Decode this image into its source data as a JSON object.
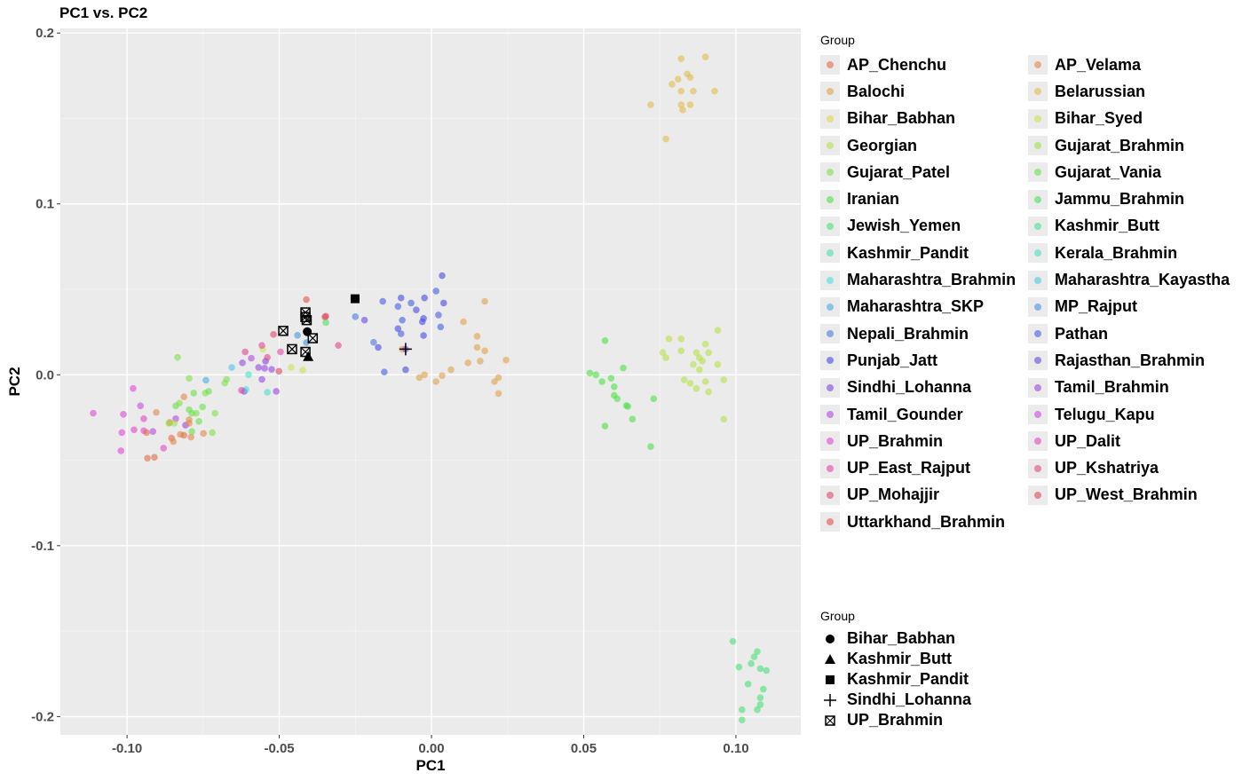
{
  "chart_data": {
    "type": "scatter",
    "title": "PC1 vs. PC2",
    "xlabel": "PC1",
    "ylabel": "PC2",
    "xlim": [
      -0.1219,
      0.1213
    ],
    "ylim": [
      -0.2107,
      0.2027
    ],
    "xticks": [
      -0.1,
      -0.05,
      0,
      0.05,
      0.1
    ],
    "xtick_labels": [
      "-0.10",
      "-0.05",
      "0.00",
      "0.05",
      "0.10"
    ],
    "yticks": [
      -0.2,
      -0.1,
      0,
      0.1,
      0.2
    ],
    "ytick_labels": [
      "-0.2",
      "-0.1",
      "0.0",
      "0.1",
      "0.2"
    ],
    "grid": true,
    "legend_title": "Group",
    "legend_placement": "right",
    "groups": [
      "AP_Chenchu",
      "AP_Velama",
      "Balochi",
      "Belarussian",
      "Bihar_Babhan",
      "Bihar_Syed",
      "Georgian",
      "Gujarat_Brahmin",
      "Gujarat_Patel",
      "Gujarat_Vania",
      "Iranian",
      "Jammu_Brahmin",
      "Jewish_Yemen",
      "Kashmir_Butt",
      "Kashmir_Pandit",
      "Kerala_Brahmin",
      "Maharashtra_Brahmin",
      "Maharashtra_Kayastha",
      "Maharashtra_SKP",
      "MP_Rajput",
      "Nepali_Brahmin",
      "Pathan",
      "Punjab_Jatt",
      "Rajasthan_Brahmin",
      "Sindhi_Lohanna",
      "Tamil_Brahmin",
      "Tamil_Gounder",
      "Telugu_Kapu",
      "UP_Brahmin",
      "UP_Dalit",
      "UP_East_Rajput",
      "UP_Kshatriya",
      "UP_Mohajjir",
      "UP_West_Brahmin",
      "Uttarkhand_Brahmin"
    ],
    "points": [
      [
        0.082,
        0.185,
        3
      ],
      [
        0.09,
        0.186,
        3
      ],
      [
        0.084,
        0.176,
        3
      ],
      [
        0.081,
        0.173,
        3
      ],
      [
        0.085,
        0.174,
        3
      ],
      [
        0.079,
        0.17,
        3
      ],
      [
        0.086,
        0.166,
        3
      ],
      [
        0.082,
        0.166,
        3
      ],
      [
        0.093,
        0.166,
        3
      ],
      [
        0.072,
        0.158,
        3
      ],
      [
        0.082,
        0.158,
        3
      ],
      [
        0.085,
        0.158,
        3
      ],
      [
        0.0825,
        0.155,
        3
      ],
      [
        0.077,
        0.138,
        3
      ],
      [
        0.094,
        0.026,
        6
      ],
      [
        0.078,
        0.021,
        6
      ],
      [
        0.082,
        0.021,
        6
      ],
      [
        0.09,
        0.018,
        6
      ],
      [
        0.076,
        0.013,
        6
      ],
      [
        0.082,
        0.014,
        6
      ],
      [
        0.087,
        0.013,
        6
      ],
      [
        0.091,
        0.013,
        6
      ],
      [
        0.077,
        0.01,
        6
      ],
      [
        0.088,
        0.01,
        6
      ],
      [
        0.089,
        0.008,
        6
      ],
      [
        0.086,
        0.006,
        6
      ],
      [
        0.094,
        0.006,
        6
      ],
      [
        0.088,
        0.003,
        6
      ],
      [
        0.083,
        -0.003,
        6
      ],
      [
        0.085,
        -0.005,
        6
      ],
      [
        0.096,
        -0.003,
        6
      ],
      [
        0.09,
        -0.004,
        6
      ],
      [
        0.087,
        -0.008,
        6
      ],
      [
        0.091,
        -0.01,
        6
      ],
      [
        0.096,
        -0.026,
        6
      ],
      [
        0.057,
        0.02,
        10
      ],
      [
        0.052,
        0.001,
        10
      ],
      [
        0.054,
        0.0,
        10
      ],
      [
        0.063,
        0.004,
        10
      ],
      [
        0.059,
        -0.002,
        10
      ],
      [
        0.056,
        -0.004,
        10
      ],
      [
        0.06,
        -0.007,
        10
      ],
      [
        0.06,
        -0.012,
        10
      ],
      [
        0.061,
        -0.014,
        10
      ],
      [
        0.064,
        -0.018,
        10
      ],
      [
        0.0645,
        -0.0185,
        10
      ],
      [
        0.073,
        -0.014,
        10
      ],
      [
        0.066,
        -0.026,
        10
      ],
      [
        0.057,
        -0.03,
        10
      ],
      [
        0.072,
        -0.042,
        10
      ],
      [
        0.099,
        -0.156,
        12
      ],
      [
        0.107,
        -0.162,
        12
      ],
      [
        0.105,
        -0.169,
        12
      ],
      [
        0.106,
        -0.165,
        12
      ],
      [
        0.108,
        -0.172,
        12
      ],
      [
        0.11,
        -0.173,
        12
      ],
      [
        0.101,
        -0.171,
        12
      ],
      [
        0.104,
        -0.181,
        12
      ],
      [
        0.109,
        -0.184,
        12
      ],
      [
        0.108,
        -0.189,
        12
      ],
      [
        0.108,
        -0.193,
        12
      ],
      [
        0.107,
        -0.196,
        12
      ],
      [
        0.102,
        -0.196,
        12
      ],
      [
        0.102,
        -0.202,
        12
      ],
      [
        0.0035,
        0.058,
        22
      ],
      [
        0.0015,
        0.049,
        21
      ],
      [
        0.004,
        0.042,
        22
      ],
      [
        -0.016,
        0.043,
        21
      ],
      [
        -0.01,
        0.045,
        22
      ],
      [
        -0.0067,
        0.042,
        21
      ],
      [
        -0.0023,
        0.045,
        22
      ],
      [
        -0.011,
        0.04,
        21
      ],
      [
        -0.005,
        0.038,
        22
      ],
      [
        0.0023,
        0.035,
        21
      ],
      [
        -0.0026,
        0.033,
        22
      ],
      [
        -0.0096,
        0.032,
        21
      ],
      [
        -0.003,
        0.031,
        22
      ],
      [
        0.003,
        0.028,
        21
      ],
      [
        -0.011,
        0.027,
        22
      ],
      [
        -0.01,
        0.024,
        21
      ],
      [
        -0.0026,
        0.023,
        22
      ],
      [
        -0.025,
        0.034,
        20
      ],
      [
        -0.022,
        0.032,
        23
      ],
      [
        -0.019,
        0.019,
        20
      ],
      [
        -0.0175,
        0.016,
        22
      ],
      [
        -0.0155,
        0.0016,
        21
      ],
      [
        -0.0085,
        0.003,
        22
      ],
      [
        0.0175,
        0.043,
        2
      ],
      [
        0.0105,
        0.031,
        2
      ],
      [
        0.015,
        0.0225,
        2
      ],
      [
        0.015,
        0.016,
        2
      ],
      [
        0.0175,
        0.014,
        2
      ],
      [
        0.016,
        0.008,
        2
      ],
      [
        0.012,
        0.007,
        2
      ],
      [
        0.0245,
        0.0086,
        2
      ],
      [
        0.0064,
        0.003,
        2
      ],
      [
        0.0035,
        -0.0005,
        2
      ],
      [
        -0.0023,
        0.0,
        2
      ],
      [
        -0.004,
        -0.0016,
        2
      ],
      [
        0.0015,
        -0.004,
        2
      ],
      [
        0.022,
        -0.0016,
        2
      ],
      [
        0.0207,
        -0.004,
        2
      ],
      [
        0.022,
        -0.011,
        2
      ],
      [
        -0.0096,
        0.015,
        2
      ],
      [
        -0.0085,
        0.015,
        24
      ],
      [
        -0.1111,
        -0.0225,
        28
      ],
      [
        -0.1012,
        -0.0231,
        28
      ],
      [
        -0.098,
        -0.008,
        28
      ],
      [
        -0.0956,
        -0.0182,
        27
      ],
      [
        -0.0945,
        -0.0257,
        29
      ],
      [
        -0.1017,
        -0.0338,
        28
      ],
      [
        -0.102,
        -0.0445,
        28
      ],
      [
        -0.0977,
        -0.0322,
        29
      ],
      [
        -0.0945,
        -0.0327,
        28
      ],
      [
        -0.088,
        -0.0429,
        29
      ],
      [
        -0.0915,
        -0.0332,
        26
      ],
      [
        -0.084,
        -0.0257,
        26
      ],
      [
        -0.0808,
        -0.0295,
        25
      ],
      [
        -0.0621,
        0.007,
        25
      ],
      [
        -0.0592,
        0.0097,
        26
      ],
      [
        -0.0568,
        0.0043,
        25
      ],
      [
        -0.0548,
        0.0038,
        25
      ],
      [
        -0.0545,
        0.008,
        24
      ],
      [
        -0.0525,
        0.0032,
        25
      ],
      [
        -0.0557,
        -0.0027,
        25
      ],
      [
        -0.0615,
        -0.0097,
        24
      ],
      [
        -0.051,
        -0.0097,
        25
      ],
      [
        -0.0813,
        -0.0129,
        1
      ],
      [
        -0.0904,
        -0.022,
        1
      ],
      [
        -0.086,
        -0.0279,
        0
      ],
      [
        -0.0796,
        -0.0263,
        1
      ],
      [
        -0.0796,
        -0.0284,
        1
      ],
      [
        -0.0936,
        -0.0338,
        0
      ],
      [
        -0.0825,
        -0.0349,
        1
      ],
      [
        -0.0813,
        -0.0354,
        0
      ],
      [
        -0.079,
        -0.0365,
        1
      ],
      [
        -0.0749,
        -0.0343,
        1
      ],
      [
        -0.0854,
        -0.037,
        0
      ],
      [
        -0.0848,
        -0.0391,
        1
      ],
      [
        -0.0933,
        -0.0488,
        0
      ],
      [
        -0.091,
        -0.0483,
        0
      ],
      [
        -0.0834,
        0.0102,
        8
      ],
      [
        -0.0796,
        -0.0021,
        8
      ],
      [
        -0.0781,
        -0.0107,
        9
      ],
      [
        -0.0743,
        -0.0107,
        8
      ],
      [
        -0.0732,
        -0.0097,
        9
      ],
      [
        -0.0679,
        -0.0048,
        8
      ],
      [
        -0.0673,
        -0.0027,
        8
      ],
      [
        -0.084,
        -0.0182,
        9
      ],
      [
        -0.0828,
        -0.0166,
        8
      ],
      [
        -0.0796,
        -0.0204,
        9
      ],
      [
        -0.0773,
        -0.0225,
        8
      ],
      [
        -0.0752,
        -0.0188,
        9
      ],
      [
        -0.0711,
        -0.0225,
        8
      ],
      [
        -0.0764,
        -0.0273,
        9
      ],
      [
        -0.0863,
        -0.0284,
        7
      ],
      [
        -0.0845,
        -0.0284,
        7
      ],
      [
        -0.0787,
        -0.0332,
        9
      ],
      [
        -0.072,
        -0.0338,
        8
      ],
      [
        -0.0787,
        -0.0225,
        9
      ],
      [
        -0.0461,
        0.0043,
        5
      ],
      [
        -0.0423,
        0.0027,
        5
      ],
      [
        -0.0554,
        0.015,
        5
      ],
      [
        -0.0656,
        0.0043,
        17
      ],
      [
        -0.0741,
        -0.0032,
        18
      ],
      [
        -0.0601,
        0.0,
        15
      ],
      [
        -0.0609,
        -0.0086,
        16
      ],
      [
        -0.0539,
        -0.0102,
        15
      ],
      [
        -0.0624,
        -0.0091,
        30
      ],
      [
        -0.0612,
        0.0134,
        31
      ],
      [
        -0.0557,
        0.0172,
        30
      ],
      [
        -0.0539,
        0.0102,
        31
      ],
      [
        -0.0519,
        0.0236,
        32
      ],
      [
        -0.0496,
        0.0134,
        30
      ],
      [
        -0.0501,
        0.0021,
        33
      ],
      [
        -0.0411,
        0.044,
        34
      ],
      [
        -0.0347,
        0.0343,
        32
      ],
      [
        -0.035,
        0.0338,
        33
      ],
      [
        -0.0306,
        0.0172,
        31
      ],
      [
        -0.0347,
        0.0306,
        11
      ],
      [
        -0.044,
        0.0231,
        19
      ],
      [
        -0.0411,
        0.0188,
        19
      ]
    ],
    "highlight_legend_title": "Group",
    "highlight": [
      {
        "name": "Bihar_Babhan",
        "shape": "circle",
        "points": [
          [
            -0.0408,
            0.0252
          ]
        ]
      },
      {
        "name": "Kashmir_Butt",
        "shape": "triangle",
        "points": [
          [
            -0.0405,
            0.0107
          ]
        ]
      },
      {
        "name": "Kashmir_Pandit",
        "shape": "square",
        "points": [
          [
            -0.0251,
            0.0445
          ]
        ]
      },
      {
        "name": "Sindhi_Lohanna",
        "shape": "plus",
        "points": [
          [
            -0.0085,
            0.015
          ]
        ]
      },
      {
        "name": "UP_Brahmin",
        "shape": "boxed-x",
        "points": [
          [
            -0.0487,
            0.0257
          ],
          [
            -0.0414,
            0.0365
          ],
          [
            -0.0414,
            0.0338
          ],
          [
            -0.041,
            0.032
          ],
          [
            -0.039,
            0.0214
          ],
          [
            -0.0458,
            0.015
          ],
          [
            -0.0414,
            0.0134
          ]
        ]
      }
    ]
  }
}
